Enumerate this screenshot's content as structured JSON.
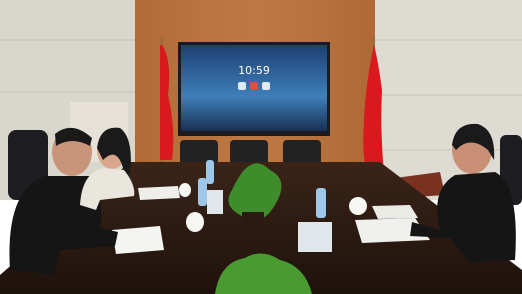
{
  "screen": {
    "time": "10:59"
  }
}
